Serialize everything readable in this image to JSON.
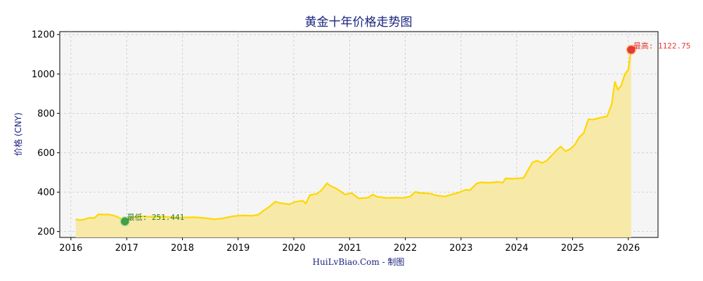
{
  "chart_data": {
    "type": "area",
    "title": "黄金十年价格走势图",
    "ylabel": "价格 (CNY)",
    "xlabel": "",
    "footer": "HuiLvBiao.Com - 制图",
    "x_ticks": [
      "2016",
      "2017",
      "2018",
      "2019",
      "2020",
      "2021",
      "2022",
      "2023",
      "2024",
      "2025",
      "2026"
    ],
    "y_ticks": [
      200,
      400,
      600,
      800,
      1000,
      1200
    ],
    "xlim": [
      "2015-10-20",
      "2026-07-15"
    ],
    "ylim": [
      170,
      1215
    ],
    "grid": true,
    "colors": {
      "line": "#FFD700",
      "fill": "#F7E9A0",
      "max_marker": "#e53935",
      "min_marker": "#43a047",
      "plot_bg": "#f5f5f5"
    },
    "series": [
      {
        "points": [
          [
            "2016-02-01",
            262
          ],
          [
            "2016-03-01",
            258
          ],
          [
            "2016-04-01",
            262
          ],
          [
            "2016-05-01",
            270
          ],
          [
            "2016-06-01",
            268
          ],
          [
            "2016-07-01",
            288
          ],
          [
            "2016-08-01",
            286
          ],
          [
            "2016-09-01",
            287
          ],
          [
            "2016-10-01",
            282
          ],
          [
            "2016-11-01",
            275
          ],
          [
            "2016-12-01",
            262
          ],
          [
            "2016-12-20",
            255
          ],
          [
            "2017-02-01",
            270
          ],
          [
            "2017-04-01",
            278
          ],
          [
            "2017-06-01",
            275
          ],
          [
            "2017-08-01",
            277
          ],
          [
            "2017-10-01",
            274
          ],
          [
            "2017-12-01",
            270
          ],
          [
            "2018-02-01",
            272
          ],
          [
            "2018-04-01",
            272
          ],
          [
            "2018-06-01",
            268
          ],
          [
            "2018-08-01",
            262
          ],
          [
            "2018-10-01",
            268
          ],
          [
            "2018-12-01",
            278
          ],
          [
            "2019-02-01",
            282
          ],
          [
            "2019-04-01",
            280
          ],
          [
            "2019-05-15",
            286
          ],
          [
            "2019-06-15",
            305
          ],
          [
            "2019-08-01",
            330
          ],
          [
            "2019-09-01",
            352
          ],
          [
            "2019-10-01",
            345
          ],
          [
            "2019-12-01",
            338
          ],
          [
            "2020-01-15",
            352
          ],
          [
            "2020-03-01",
            356
          ],
          [
            "2020-03-20",
            342
          ],
          [
            "2020-04-15",
            385
          ],
          [
            "2020-06-01",
            392
          ],
          [
            "2020-07-01",
            410
          ],
          [
            "2020-08-05",
            445
          ],
          [
            "2020-09-01",
            430
          ],
          [
            "2020-10-01",
            420
          ],
          [
            "2020-11-01",
            405
          ],
          [
            "2020-12-01",
            388
          ],
          [
            "2021-01-15",
            395
          ],
          [
            "2021-03-01",
            368
          ],
          [
            "2021-05-01",
            372
          ],
          [
            "2021-06-01",
            388
          ],
          [
            "2021-07-01",
            376
          ],
          [
            "2021-09-01",
            370
          ],
          [
            "2021-11-01",
            372
          ],
          [
            "2021-12-15",
            370
          ],
          [
            "2022-02-01",
            378
          ],
          [
            "2022-03-08",
            402
          ],
          [
            "2022-04-01",
            396
          ],
          [
            "2022-05-01",
            395
          ],
          [
            "2022-06-15",
            392
          ],
          [
            "2022-08-01",
            382
          ],
          [
            "2022-09-15",
            378
          ],
          [
            "2022-11-01",
            388
          ],
          [
            "2022-12-15",
            398
          ],
          [
            "2023-02-01",
            412
          ],
          [
            "2023-03-01",
            410
          ],
          [
            "2023-04-15",
            445
          ],
          [
            "2023-05-15",
            450
          ],
          [
            "2023-07-01",
            448
          ],
          [
            "2023-09-01",
            452
          ],
          [
            "2023-10-01",
            448
          ],
          [
            "2023-10-20",
            470
          ],
          [
            "2023-12-01",
            468
          ],
          [
            "2024-01-15",
            470
          ],
          [
            "2024-02-15",
            472
          ],
          [
            "2024-03-15",
            512
          ],
          [
            "2024-04-15",
            552
          ],
          [
            "2024-05-15",
            560
          ],
          [
            "2024-06-15",
            548
          ],
          [
            "2024-07-15",
            560
          ],
          [
            "2024-08-15",
            585
          ],
          [
            "2024-09-15",
            610
          ],
          [
            "2024-10-15",
            632
          ],
          [
            "2024-11-15",
            608
          ],
          [
            "2024-12-15",
            618
          ],
          [
            "2025-01-15",
            640
          ],
          [
            "2025-02-15",
            680
          ],
          [
            "2025-03-15",
            700
          ],
          [
            "2025-04-15",
            770
          ],
          [
            "2025-05-15",
            768
          ],
          [
            "2025-06-15",
            775
          ],
          [
            "2025-07-15",
            780
          ],
          [
            "2025-08-15",
            785
          ],
          [
            "2025-09-15",
            845
          ],
          [
            "2025-10-05",
            960
          ],
          [
            "2025-10-25",
            920
          ],
          [
            "2025-11-15",
            940
          ],
          [
            "2025-12-10",
            1000
          ],
          [
            "2025-12-31",
            1020
          ],
          [
            "2026-01-20",
            1122.75
          ]
        ]
      }
    ],
    "annotations": {
      "max": {
        "label": "最高: 1122.75",
        "x": "2026-01-20",
        "y": 1122.75
      },
      "min": {
        "label": "最低: 251.441",
        "x": "2016-12-20",
        "y": 251.441
      }
    }
  }
}
